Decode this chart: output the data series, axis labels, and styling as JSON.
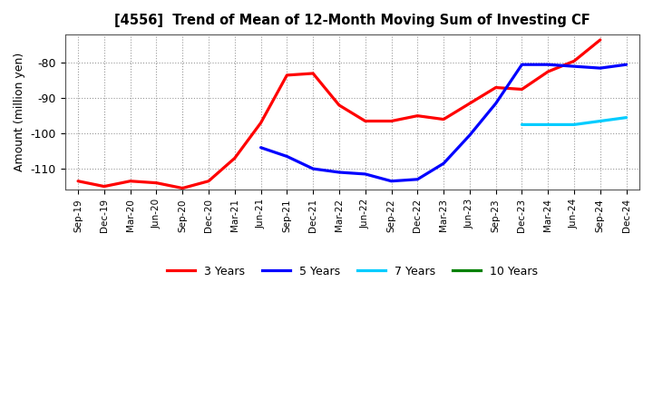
{
  "title": "[4556]  Trend of Mean of 12-Month Moving Sum of Investing CF",
  "ylabel": "Amount (million yen)",
  "background_color": "#ffffff",
  "plot_bg_color": "#ffffff",
  "grid_color": "#aaaaaa",
  "x_labels": [
    "Sep-19",
    "Dec-19",
    "Mar-20",
    "Jun-20",
    "Sep-20",
    "Dec-20",
    "Mar-21",
    "Jun-21",
    "Sep-21",
    "Dec-21",
    "Mar-22",
    "Jun-22",
    "Sep-22",
    "Dec-22",
    "Mar-23",
    "Jun-23",
    "Sep-23",
    "Dec-23",
    "Mar-24",
    "Jun-24",
    "Sep-24",
    "Dec-24"
  ],
  "ylim": [
    -116,
    -72
  ],
  "yticks": [
    -110,
    -100,
    -90,
    -80
  ],
  "series": {
    "3 Years": {
      "color": "#ff0000",
      "x_indices": [
        0,
        1,
        2,
        3,
        4,
        5,
        6,
        7,
        8,
        9,
        10,
        11,
        12,
        13,
        14,
        15,
        16,
        17,
        18,
        19,
        20
      ],
      "y": [
        -113.5,
        -115.0,
        -113.5,
        -114.0,
        -115.5,
        -113.5,
        -107.0,
        -97.0,
        -83.5,
        -83.0,
        -92.0,
        -96.5,
        -96.5,
        -95.0,
        -96.0,
        -91.5,
        -87.0,
        -87.5,
        -82.5,
        -79.5,
        -73.5
      ]
    },
    "5 Years": {
      "color": "#0000ff",
      "x_indices": [
        7,
        8,
        9,
        10,
        11,
        12,
        13,
        14,
        15,
        16,
        17,
        18,
        19,
        20,
        21
      ],
      "y": [
        -104.0,
        -106.5,
        -110.0,
        -111.0,
        -111.5,
        -113.5,
        -113.0,
        -108.5,
        -100.5,
        -91.5,
        -80.5,
        -80.5,
        -81.0,
        -81.5,
        -80.5
      ]
    },
    "7 Years": {
      "color": "#00ccff",
      "x_indices": [
        17,
        18,
        19,
        20,
        21
      ],
      "y": [
        -97.5,
        -97.5,
        -97.5,
        -96.5,
        -95.5
      ]
    },
    "10 Years": {
      "color": "#008000",
      "x_indices": [],
      "y": []
    }
  },
  "legend_entries": [
    "3 Years",
    "5 Years",
    "7 Years",
    "10 Years"
  ],
  "legend_colors": [
    "#ff0000",
    "#0000ff",
    "#00ccff",
    "#008000"
  ]
}
